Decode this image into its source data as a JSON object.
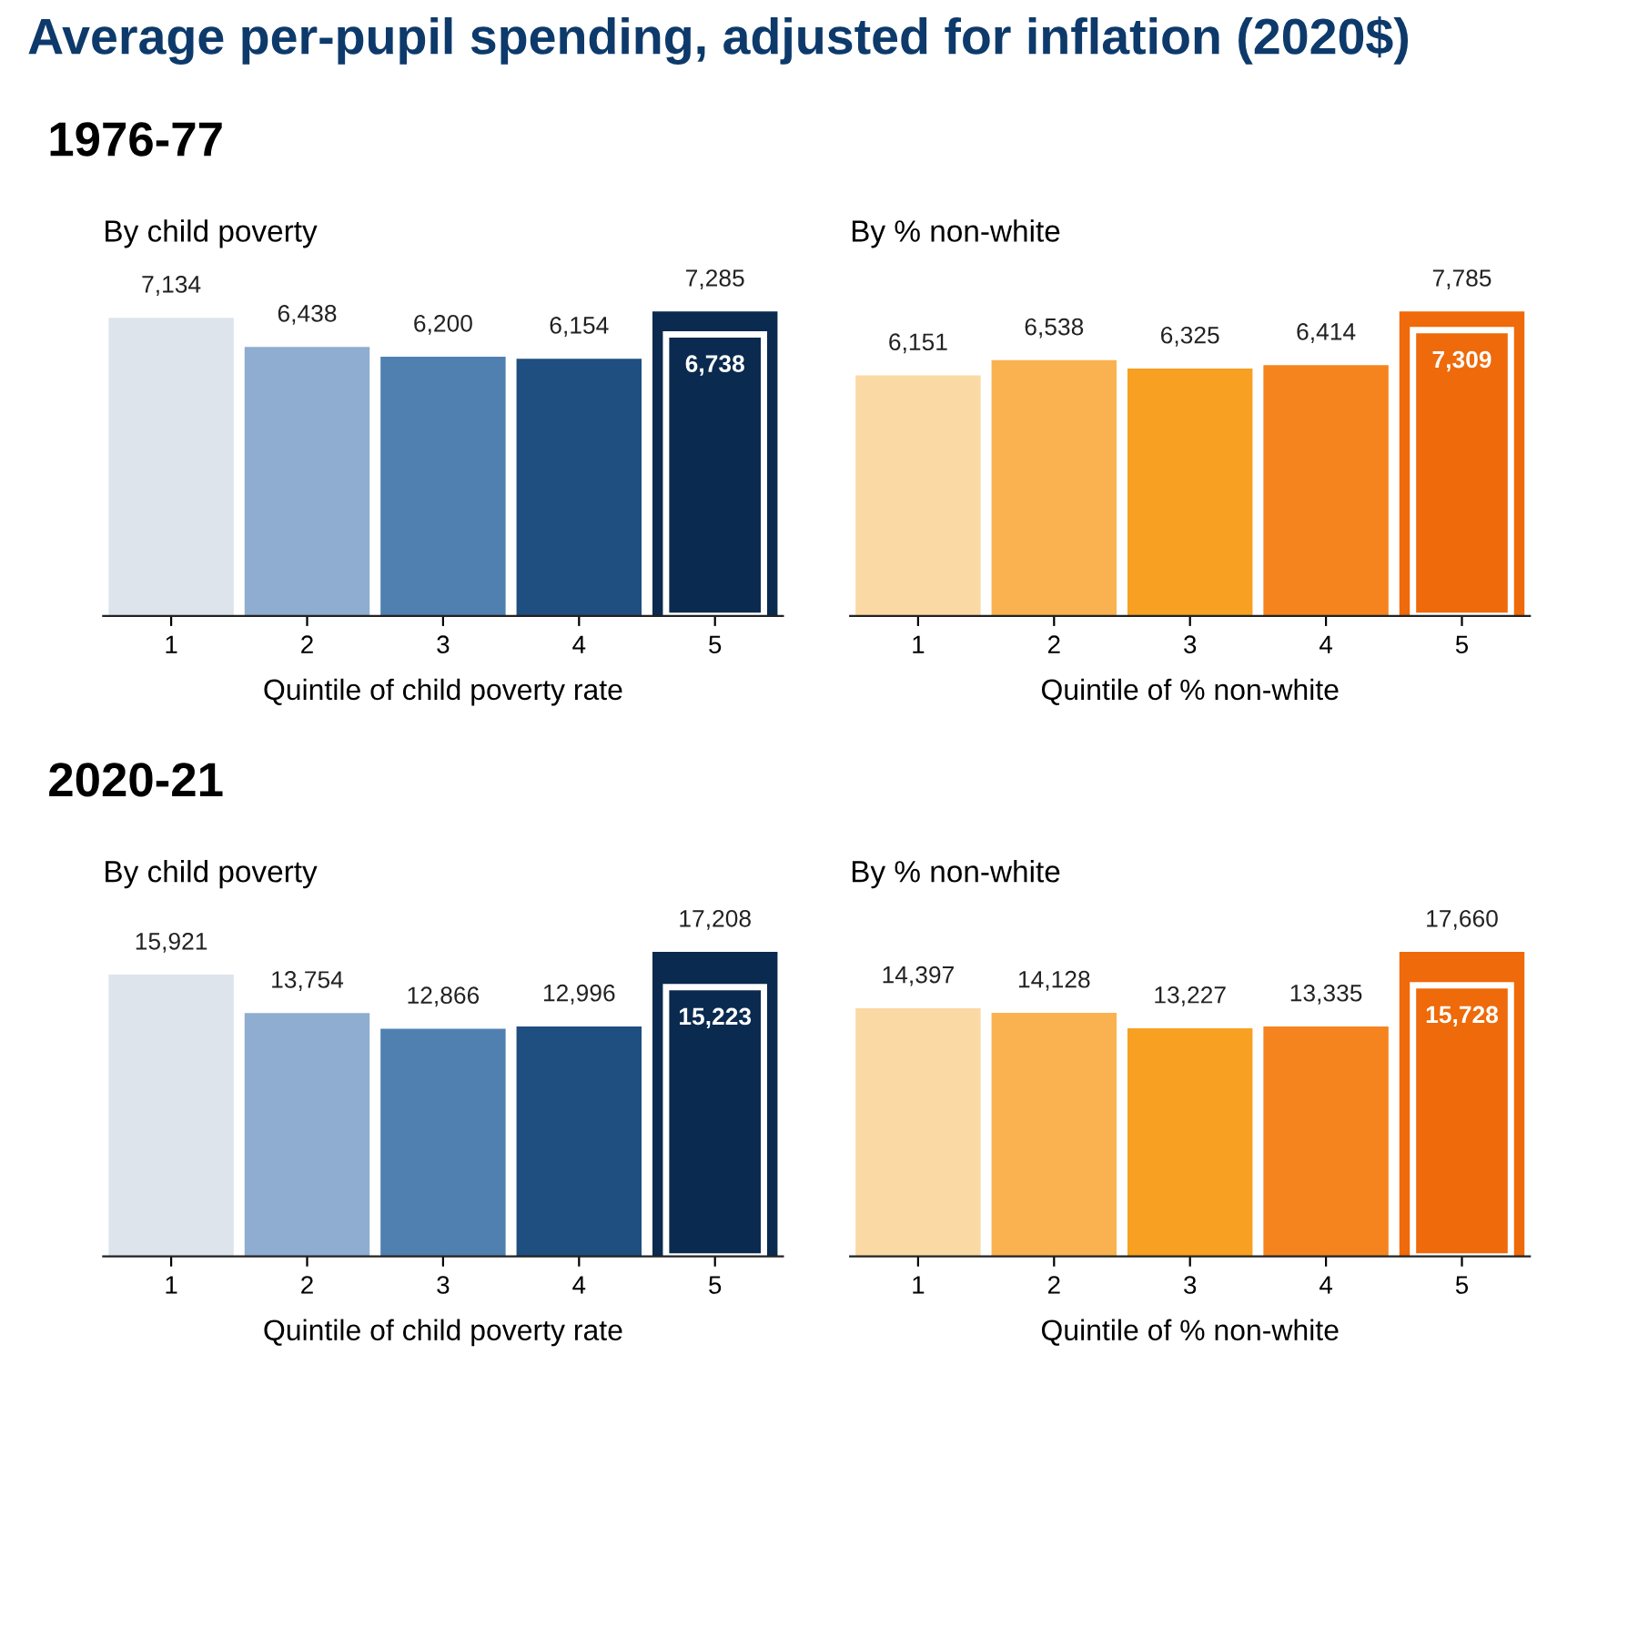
{
  "chart_data": [
    {
      "type": "bar",
      "title": "By child poverty",
      "xlabel": "Quintile of child poverty rate",
      "annotations": [
        "Average per-pupil spending, adjusted for inflation (2020$)",
        "1976-77"
      ],
      "categories": [
        "1",
        "2",
        "3",
        "4",
        "5"
      ],
      "series": [
        {
          "colors": [
            "#dde4ec",
            "#8fadd0",
            "#5080b0",
            "#1f4e80",
            "#0a2a4f"
          ],
          "values": [
            7134,
            6438,
            6200,
            6154,
            7285
          ],
          "value_labels": [
            "7,134",
            "6,438",
            "6,200",
            "6,154",
            "7,285"
          ]
        },
        {
          "colors": [
            "#dde4ec",
            "#8fadd0",
            "#5080b0",
            "#1f4e80",
            "#0a2a4f"
          ],
          "values": [
            null,
            null,
            null,
            null,
            6738
          ],
          "value_labels": [
            null,
            null,
            null,
            null,
            "6,738"
          ]
        }
      ]
    },
    {
      "type": "bar",
      "title": "By % non-white",
      "xlabel": "Quintile of % non-white",
      "categories": [
        "1",
        "2",
        "3",
        "4",
        "5"
      ],
      "series": [
        {
          "colors": [
            "#fbd9a5",
            "#f9b24f",
            "#f7a021",
            "#f5841f",
            "#ee6a0a"
          ],
          "values": [
            6151,
            6538,
            6325,
            6414,
            7785
          ],
          "value_labels": [
            "6,151",
            "6,538",
            "6,325",
            "6,414",
            "7,785"
          ]
        },
        {
          "colors": [
            "#fbd9a5",
            "#f9b24f",
            "#f7a021",
            "#f5841f",
            "#ee6a0a"
          ],
          "values": [
            null,
            null,
            null,
            null,
            7309
          ],
          "value_labels": [
            null,
            null,
            null,
            null,
            "7,309"
          ]
        }
      ]
    },
    {
      "type": "bar",
      "title": "By child poverty",
      "xlabel": "Quintile of child poverty rate",
      "annotations": [
        "2020-21"
      ],
      "categories": [
        "1",
        "2",
        "3",
        "4",
        "5"
      ],
      "series": [
        {
          "colors": [
            "#dde4ec",
            "#8fadd0",
            "#5080b0",
            "#1f4e80",
            "#0a2a4f"
          ],
          "values": [
            15921,
            13754,
            12866,
            12996,
            17208
          ],
          "value_labels": [
            "15,921",
            "13,754",
            "12,866",
            "12,996",
            "17,208"
          ]
        },
        {
          "colors": [
            "#dde4ec",
            "#8fadd0",
            "#5080b0",
            "#1f4e80",
            "#0a2a4f"
          ],
          "values": [
            null,
            null,
            null,
            null,
            15223
          ],
          "value_labels": [
            null,
            null,
            null,
            null,
            "15,223"
          ]
        }
      ]
    },
    {
      "type": "bar",
      "title": "By % non-white",
      "xlabel": "Quintile of % non-white",
      "categories": [
        "1",
        "2",
        "3",
        "4",
        "5"
      ],
      "series": [
        {
          "colors": [
            "#fbd9a5",
            "#f9b24f",
            "#f7a021",
            "#f5841f",
            "#ee6a0a"
          ],
          "values": [
            14397,
            14128,
            13227,
            13335,
            17660
          ],
          "value_labels": [
            "14,397",
            "14,128",
            "13,227",
            "13,335",
            "17,660"
          ]
        },
        {
          "colors": [
            "#fbd9a5",
            "#f9b24f",
            "#f7a021",
            "#f5841f",
            "#ee6a0a"
          ],
          "values": [
            null,
            null,
            null,
            null,
            15728
          ],
          "value_labels": [
            null,
            null,
            null,
            null,
            "15,728"
          ]
        }
      ]
    }
  ]
}
